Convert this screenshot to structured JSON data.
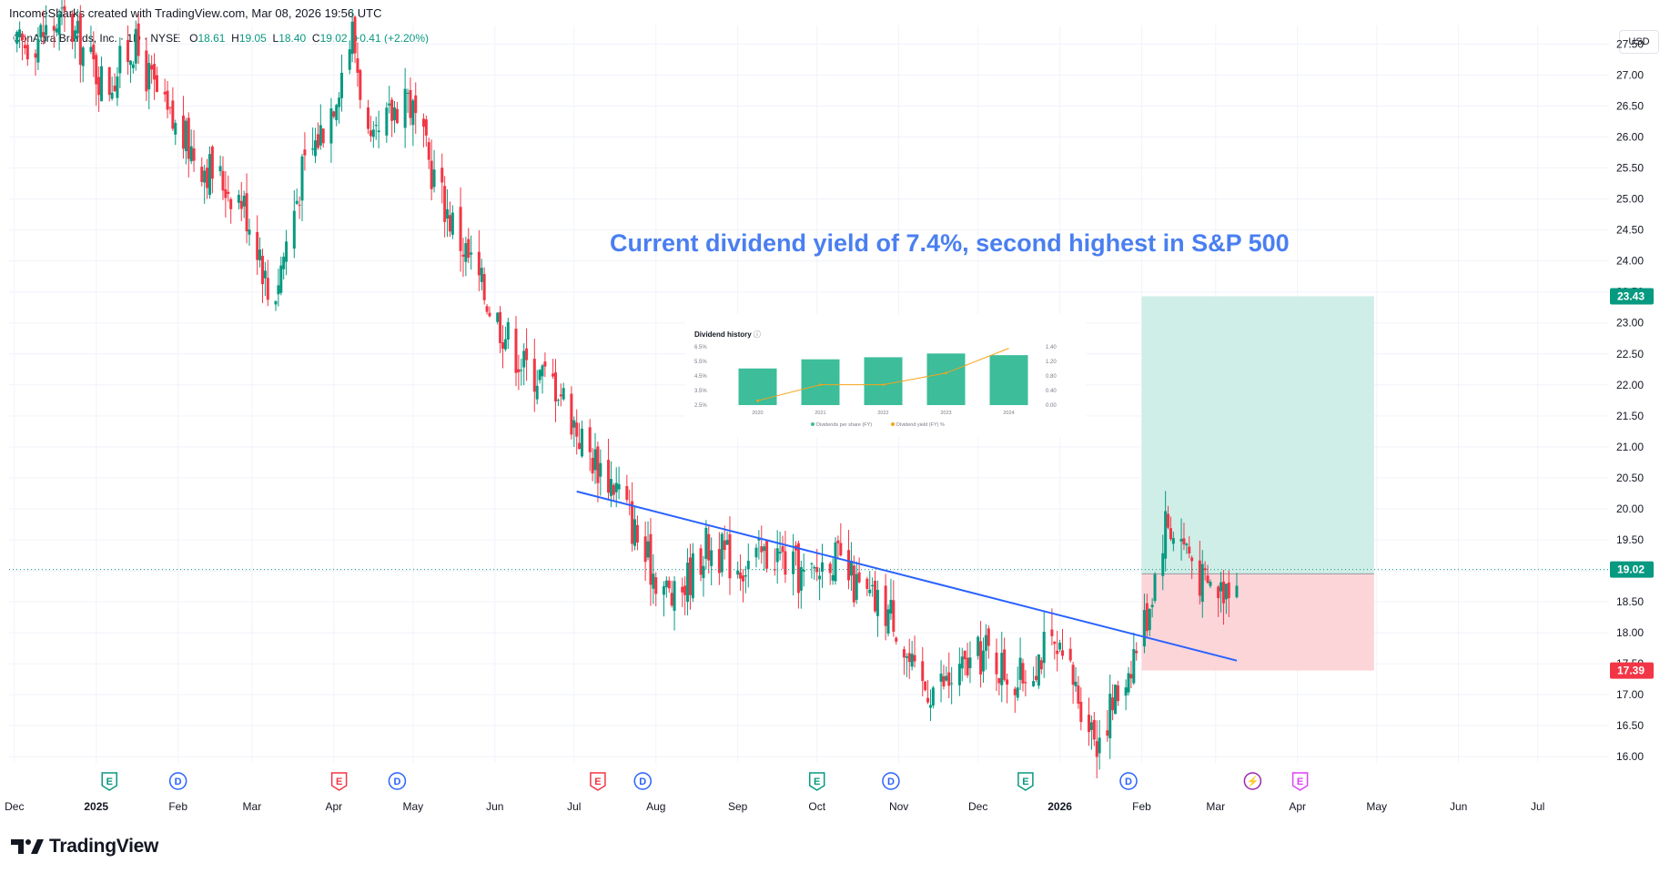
{
  "header": {
    "credit": "IncomeSharks created with TradingView.com, Mar 08, 2026 19:56 UTC",
    "symbol_line": "ConAgra Brands, Inc. · 1D · NYSE",
    "open_label": "O",
    "open": "18.61",
    "high_label": "H",
    "high": "19.05",
    "low_label": "L",
    "low": "18.40",
    "close_label": "C",
    "close": "19.02",
    "change": "+0.41 (+2.20%)"
  },
  "currency": "USD",
  "annotation": "Current dividend yield of 7.4%, second highest in S&P 500",
  "brand": "TradingView",
  "colors": {
    "up": "#089981",
    "down": "#f23645",
    "trendline": "#2962ff",
    "annotation": "#4a7ff0",
    "target_zone": "#cfeee7",
    "stop_zone": "#fcd5d8",
    "target_label": "#089981",
    "stop_label": "#f23645",
    "price_label": "#089981",
    "inset_bar": "#3dbd9a",
    "inset_line": "#f7a21b"
  },
  "chart_data": [
    {
      "type": "candlestick",
      "yticks": [
        "16.00",
        "16.50",
        "17.00",
        "17.50",
        "18.00",
        "18.50",
        "19.00",
        "19.50",
        "20.00",
        "20.50",
        "21.00",
        "21.50",
        "22.00",
        "22.50",
        "23.00",
        "23.50",
        "24.00",
        "24.50",
        "25.00",
        "25.50",
        "26.00",
        "26.50",
        "27.00",
        "27.50"
      ],
      "ylim": [
        15.9,
        27.8
      ],
      "xticks": [
        "Dec",
        "2025",
        "Feb",
        "Mar",
        "Apr",
        "May",
        "Jun",
        "Jul",
        "Aug",
        "Sep",
        "Oct",
        "Nov",
        "Dec",
        "2026",
        "Feb",
        "Mar",
        "Apr",
        "May",
        "Jun",
        "Jul"
      ],
      "xlim": [
        "2024-11-29",
        "2026-07-28"
      ],
      "last_price": 19.02,
      "position": {
        "entry": 18.95,
        "target": 23.43,
        "stop": 17.39,
        "start": "2026-02-01",
        "end": "2026-04-30",
        "target_label": "23.43",
        "stop_label": "17.39",
        "price_label": "19.02"
      },
      "trendline": {
        "from": [
          "2025-07-02",
          20.28
        ],
        "to": [
          "2026-03-09",
          17.55
        ]
      },
      "events": [
        {
          "type": "E",
          "date": "2025-01-06",
          "color": "#089981"
        },
        {
          "type": "D",
          "date": "2025-02-01",
          "color": "#2962ff"
        },
        {
          "type": "E",
          "date": "2025-04-03",
          "color": "#f23645"
        },
        {
          "type": "D",
          "date": "2025-04-25",
          "color": "#2962ff"
        },
        {
          "type": "E",
          "date": "2025-07-10",
          "color": "#f23645"
        },
        {
          "type": "D",
          "date": "2025-07-27",
          "color": "#2962ff"
        },
        {
          "type": "E",
          "date": "2025-10-01",
          "color": "#089981"
        },
        {
          "type": "D",
          "date": "2025-10-29",
          "color": "#2962ff"
        },
        {
          "type": "E",
          "date": "2025-12-19",
          "color": "#089981"
        },
        {
          "type": "D",
          "date": "2026-01-27",
          "color": "#2962ff"
        },
        {
          "type": "S",
          "date": "2026-03-15",
          "color": "#9c27b0"
        },
        {
          "type": "E",
          "date": "2026-04-02",
          "color": "#e040fb"
        }
      ],
      "price_path": [
        [
          "2024-12-01",
          27.4
        ],
        [
          "2024-12-20",
          27.9
        ],
        [
          "2025-01-05",
          26.8
        ],
        [
          "2025-01-15",
          27.5
        ],
        [
          "2025-01-28",
          26.3
        ],
        [
          "2025-02-10",
          25.6
        ],
        [
          "2025-02-25",
          25.0
        ],
        [
          "2025-03-04",
          24.2
        ],
        [
          "2025-03-08",
          23.2
        ],
        [
          "2025-03-20",
          25.4
        ],
        [
          "2025-03-31",
          26.5
        ],
        [
          "2025-04-08",
          27.7
        ],
        [
          "2025-04-15",
          25.7
        ],
        [
          "2025-04-28",
          26.8
        ],
        [
          "2025-05-06",
          25.7
        ],
        [
          "2025-05-15",
          24.7
        ],
        [
          "2025-05-30",
          23.3
        ],
        [
          "2025-06-12",
          22.3
        ],
        [
          "2025-06-25",
          22.0
        ],
        [
          "2025-07-05",
          21.0
        ],
        [
          "2025-07-18",
          20.3
        ],
        [
          "2025-07-28",
          19.2
        ],
        [
          "2025-08-08",
          18.5
        ],
        [
          "2025-08-20",
          19.4
        ],
        [
          "2025-09-02",
          19.1
        ],
        [
          "2025-09-15",
          19.3
        ],
        [
          "2025-09-28",
          18.8
        ],
        [
          "2025-10-06",
          19.3
        ],
        [
          "2025-10-18",
          18.6
        ],
        [
          "2025-10-30",
          18.3
        ],
        [
          "2025-11-08",
          17.1
        ],
        [
          "2025-11-20",
          17.2
        ],
        [
          "2025-12-04",
          17.7
        ],
        [
          "2025-12-16",
          17.2
        ],
        [
          "2025-12-27",
          17.8
        ],
        [
          "2026-01-05",
          17.3
        ],
        [
          "2026-01-15",
          16.3
        ],
        [
          "2026-01-25",
          17.2
        ],
        [
          "2026-02-03",
          18.3
        ],
        [
          "2026-02-10",
          19.8
        ],
        [
          "2026-02-18",
          19.4
        ],
        [
          "2026-02-24",
          18.8
        ],
        [
          "2026-03-03",
          18.7
        ],
        [
          "2026-03-09",
          19.02
        ]
      ]
    },
    {
      "type": "bar+line",
      "title": "Dividend history",
      "categories": [
        "2020",
        "2021",
        "2022",
        "2023",
        "2024"
      ],
      "series": [
        {
          "name": "Dividends per share (FY)",
          "type": "bar",
          "values": [
            0.88,
            1.1,
            1.15,
            1.24,
            1.2
          ]
        },
        {
          "name": "Dividend yield (FY) %",
          "type": "line",
          "values": [
            2.8,
            3.9,
            3.9,
            4.7,
            6.4
          ]
        }
      ],
      "left_axis": [
        "6.5%",
        "5.5%",
        "4.5%",
        "3.5%",
        "2.5%"
      ],
      "right_axis": [
        "1.40",
        "1.20",
        "0.80",
        "0.40",
        "0.00"
      ]
    }
  ]
}
